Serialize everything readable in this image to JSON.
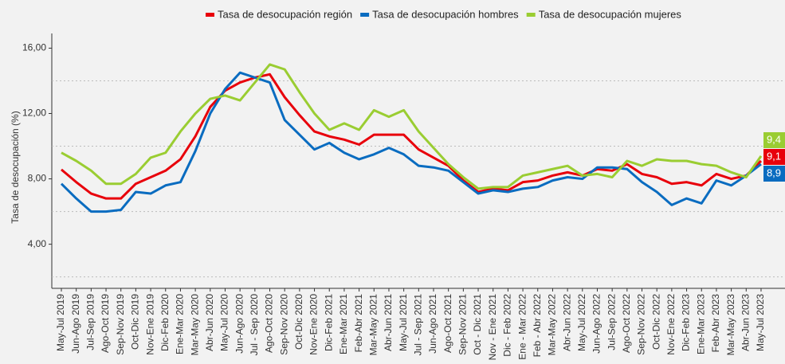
{
  "chart_data": {
    "type": "line",
    "y_label": "Tasa de desocupación (%)",
    "categories": [
      "May-Jul 2019",
      "Jun-Ago 2019",
      "Jul-Sep 2019",
      "Ago-Oct 2019",
      "Sep-Nov 2019",
      "Oct-Dic 2019",
      "Nov-Ene 2019",
      "Dic-Feb 2020",
      "Ene-Mar 2020",
      "Mar-May 2020",
      "Abr-Jun 2020",
      "May-Jul 2020",
      "Jun-Ago 2020",
      "Jul - Sep 2020",
      "Ago-Oct 2020",
      "Sep-Nov 2020",
      "Oct-Dic 2020",
      "Nov-Ene 2020",
      "Dic-Feb 2021",
      "Ene-Mar 2021",
      "Feb-Abr 2021",
      "Mar-May 2021",
      "Abr-Jun 2021",
      "May-Jul 2021",
      "Jul - Sep 2021",
      "Jun-Ago 2021",
      "Ago-Oct 2021",
      "Sep-Nov 2021",
      "Oct - Dic 2021",
      "Nov - Ene 2021",
      "Dic - Feb 2022",
      "Ene - Mar 2022",
      "Feb - Abr 2022",
      "Mar-May 2022",
      "Abr-Jun 2022",
      "May-Jul 2022",
      "Jun-Ago 2022",
      "Jul-Sep 2022",
      "Ago-Oct 2022",
      "Sep-Nov 2022",
      "Oct-Dic 2022",
      "Nov-Ene 2022",
      "Dic-Feb 2023",
      "Ene-Mar 2023",
      "Feb-Abr 2023",
      "Mar-May 2023",
      "Abr-Jun 2023",
      "May-Jul 2023"
    ],
    "series": [
      {
        "name": "Tasa de desocupación región",
        "color": "#e8000b",
        "end_label": "9,1",
        "values": [
          8.57,
          7.8,
          7.1,
          6.8,
          6.8,
          7.7,
          8.1,
          8.5,
          9.2,
          10.6,
          12.4,
          13.4,
          13.9,
          14.2,
          14.4,
          13.0,
          11.9,
          10.9,
          10.6,
          10.4,
          10.1,
          10.7,
          10.7,
          10.7,
          9.8,
          9.3,
          8.8,
          7.9,
          7.2,
          7.4,
          7.3,
          7.8,
          7.9,
          8.2,
          8.4,
          8.2,
          8.6,
          8.5,
          8.9,
          8.3,
          8.1,
          7.7,
          7.8,
          7.6,
          8.3,
          8.0,
          8.2,
          9.1
        ]
      },
      {
        "name": "Tasa de desocupación hombres",
        "color": "#0a6cc0",
        "end_label": "8,9",
        "values": [
          7.7,
          6.8,
          6.0,
          6.0,
          6.1,
          7.2,
          7.1,
          7.6,
          7.8,
          9.7,
          12.0,
          13.5,
          14.5,
          14.2,
          13.9,
          11.6,
          10.7,
          9.8,
          10.2,
          9.6,
          9.2,
          9.5,
          9.9,
          9.5,
          8.8,
          8.7,
          8.5,
          7.8,
          7.1,
          7.3,
          7.2,
          7.4,
          7.5,
          7.9,
          8.1,
          8.0,
          8.7,
          8.7,
          8.6,
          7.8,
          7.2,
          6.4,
          6.8,
          6.5,
          7.9,
          7.6,
          8.2,
          8.9
        ]
      },
      {
        "name": "Tasa de desocupación mujeres",
        "color": "#9acd32",
        "end_label": "9,4",
        "values": [
          9.6,
          9.1,
          8.5,
          7.7,
          7.7,
          8.3,
          9.3,
          9.6,
          10.9,
          12.0,
          12.9,
          13.1,
          12.8,
          13.9,
          15.0,
          14.7,
          13.3,
          12.0,
          11.0,
          11.4,
          11.0,
          12.2,
          11.8,
          12.2,
          10.9,
          9.9,
          8.9,
          8.1,
          7.4,
          7.5,
          7.5,
          8.2,
          8.4,
          8.6,
          8.8,
          8.2,
          8.3,
          8.1,
          9.1,
          8.8,
          9.2,
          9.1,
          9.1,
          8.9,
          8.8,
          8.4,
          8.1,
          9.4
        ]
      }
    ],
    "ylim": [
      1.3,
      16.9
    ],
    "yticks": [
      {
        "value": 4,
        "label": "4,00"
      },
      {
        "value": 8,
        "label": "8,00"
      },
      {
        "value": 12,
        "label": "12,00"
      },
      {
        "value": 16,
        "label": "16,00"
      }
    ],
    "minor_gridlines": [
      2,
      6,
      10,
      14
    ],
    "legend": "top"
  }
}
